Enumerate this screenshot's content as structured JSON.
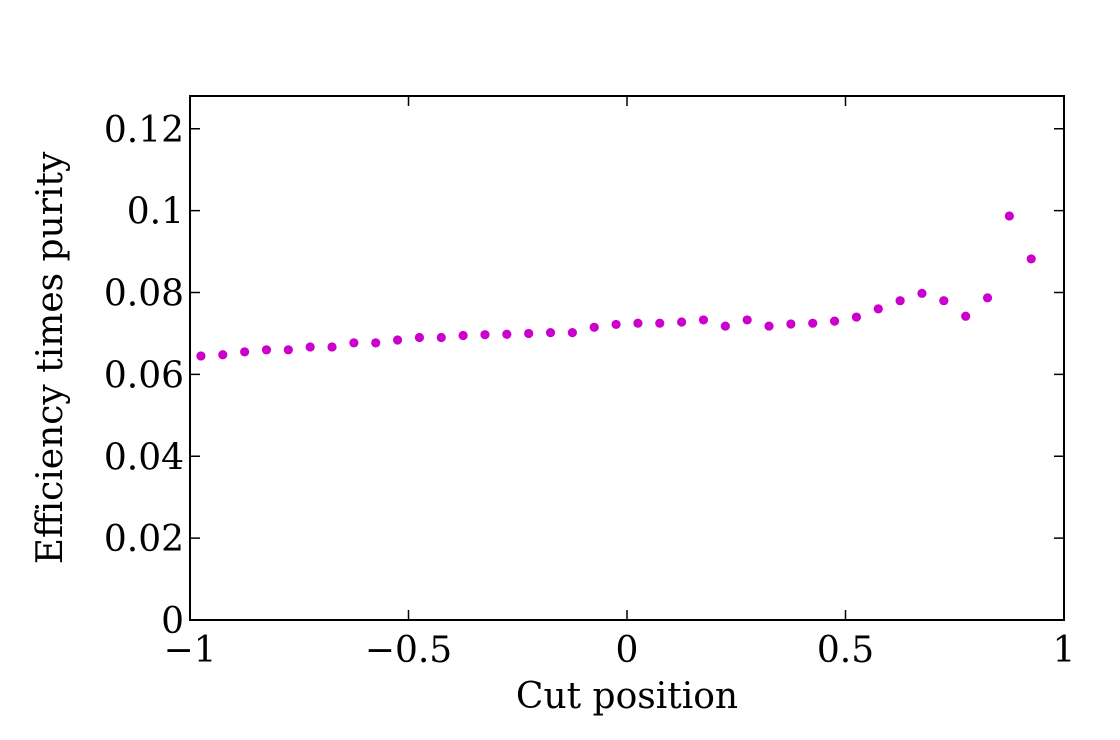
{
  "chart_data": {
    "type": "scatter",
    "title": "",
    "xlabel": "Cut position",
    "ylabel": "Efficiency times purity",
    "xlim": [
      -1,
      1
    ],
    "ylim": [
      0,
      0.128
    ],
    "x_ticks": [
      -1,
      -0.5,
      0,
      0.5,
      1
    ],
    "x_tick_labels": [
      "−1",
      "−0.5",
      "0",
      "0.5",
      "1"
    ],
    "y_ticks": [
      0,
      0.02,
      0.04,
      0.06,
      0.08,
      0.1,
      0.12
    ],
    "y_tick_labels": [
      "0",
      "0.02",
      "0.04",
      "0.06",
      "0.08",
      "0.1",
      "0.12"
    ],
    "grid": false,
    "marker_color": "#cc00cc",
    "x": [
      -0.975,
      -0.925,
      -0.875,
      -0.825,
      -0.775,
      -0.725,
      -0.675,
      -0.625,
      -0.575,
      -0.525,
      -0.475,
      -0.425,
      -0.375,
      -0.325,
      -0.275,
      -0.225,
      -0.175,
      -0.125,
      -0.075,
      -0.025,
      0.025,
      0.075,
      0.125,
      0.175,
      0.225,
      0.275,
      0.325,
      0.375,
      0.425,
      0.475,
      0.525,
      0.575,
      0.625,
      0.675,
      0.725,
      0.775,
      0.825,
      0.875,
      0.925
    ],
    "y": [
      0.0645,
      0.0648,
      0.0655,
      0.066,
      0.066,
      0.0667,
      0.0667,
      0.0677,
      0.0677,
      0.0684,
      0.069,
      0.069,
      0.0695,
      0.0697,
      0.0698,
      0.07,
      0.0702,
      0.0702,
      0.0715,
      0.0722,
      0.0725,
      0.0725,
      0.0728,
      0.0733,
      0.0718,
      0.0733,
      0.0718,
      0.0723,
      0.0725,
      0.073,
      0.074,
      0.076,
      0.078,
      0.0798,
      0.078,
      0.0742,
      0.0787,
      0.0987,
      0.0882
    ]
  }
}
